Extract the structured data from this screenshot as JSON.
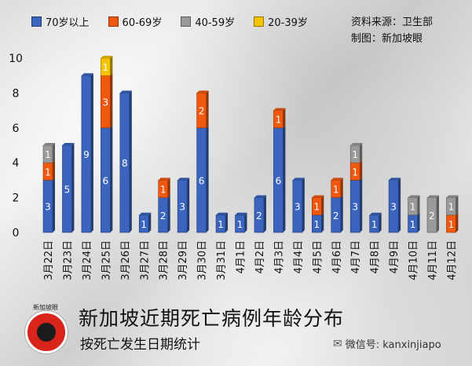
{
  "legend": [
    {
      "label": "70岁以上",
      "color": "#3a64bd"
    },
    {
      "label": "60-69岁",
      "color": "#f0580f"
    },
    {
      "label": "40-59岁",
      "color": "#9a9a9a"
    },
    {
      "label": "20-39岁",
      "color": "#f5c400"
    }
  ],
  "source": {
    "line1": "资料来源：卫生部",
    "line2": "制图：新加坡眼"
  },
  "logo": {
    "text": "新加坡眼"
  },
  "title": "新加坡近期死亡病例年龄分布",
  "subtitle": "按死亡发生日期统计",
  "wechat": {
    "icon": "wechat-icon",
    "text": "微信号: kanxinjiapo"
  },
  "chart_data": {
    "type": "bar",
    "stacked": true,
    "ylim": [
      0,
      10
    ],
    "yticks": [
      "0",
      "2",
      "4",
      "6",
      "8",
      "10"
    ],
    "categories": [
      "3月22日",
      "3月23日",
      "3月24日",
      "3月25日",
      "3月26日",
      "3月27日",
      "3月28日",
      "3月29日",
      "3月30日",
      "3月31日",
      "4月1日",
      "4月2日",
      "4月3日",
      "4月4日",
      "4月5日",
      "4月6日",
      "4月7日",
      "4月8日",
      "4月9日",
      "4月10日",
      "4月11日",
      "4月12日"
    ],
    "series": [
      {
        "name": "70岁以上",
        "color": "#3a64bd",
        "values": [
          3,
          5,
          9,
          6,
          8,
          1,
          2,
          3,
          6,
          1,
          1,
          2,
          6,
          3,
          1,
          2,
          3,
          1,
          3,
          1,
          0,
          0
        ]
      },
      {
        "name": "60-69岁",
        "color": "#f0580f",
        "values": [
          1,
          0,
          0,
          3,
          0,
          0,
          1,
          0,
          2,
          0,
          0,
          0,
          1,
          0,
          1,
          1,
          1,
          0,
          0,
          0,
          0,
          1
        ]
      },
      {
        "name": "40-59岁",
        "color": "#9a9a9a",
        "values": [
          1,
          0,
          0,
          0,
          0,
          0,
          0,
          0,
          0,
          0,
          0,
          0,
          0,
          0,
          0,
          0,
          1,
          0,
          0,
          1,
          2,
          1
        ]
      },
      {
        "name": "20-39岁",
        "color": "#f5c400",
        "values": [
          0,
          0,
          0,
          1,
          0,
          0,
          0,
          0,
          0,
          0,
          0,
          0,
          0,
          0,
          0,
          0,
          0,
          0,
          0,
          0,
          0,
          0
        ]
      }
    ]
  }
}
